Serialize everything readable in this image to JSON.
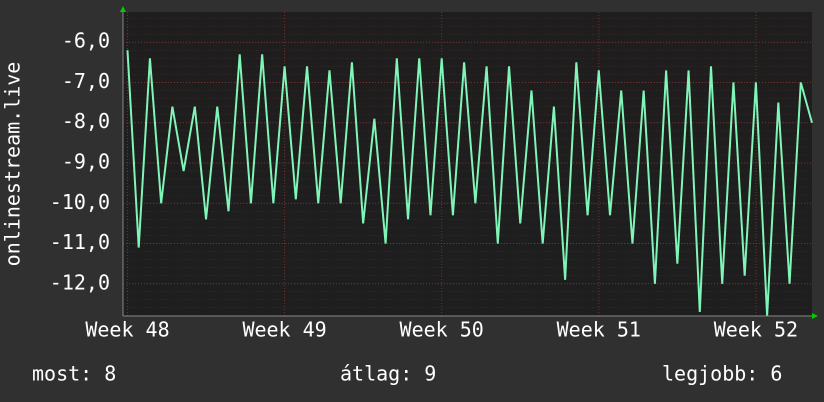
{
  "chart_data": {
    "type": "line",
    "y_label": "onlinestream.live",
    "x": [
      0,
      0.5,
      1,
      1.5,
      2,
      2.5,
      3,
      3.5,
      4,
      4.5,
      5,
      5.5,
      6,
      6.5,
      7,
      7.5,
      8,
      8.5,
      9,
      9.5,
      10,
      10.5,
      11,
      11.5,
      12,
      12.5,
      13,
      13.5,
      14,
      14.5,
      15,
      15.5,
      16,
      16.5,
      17,
      17.5,
      18,
      18.5,
      19,
      19.5,
      20,
      20.5,
      21,
      21.5,
      22,
      22.5,
      23,
      23.5,
      24,
      24.5,
      25,
      25.5,
      26,
      26.5,
      27,
      27.5,
      28,
      28.5,
      29,
      29.5,
      30,
      30.5
    ],
    "series": [
      {
        "color": "#80f5b8",
        "values": [
          -6.2,
          -11.1,
          -6.4,
          -10.0,
          -7.6,
          -9.2,
          -7.6,
          -10.4,
          -7.6,
          -10.2,
          -6.3,
          -10.0,
          -6.3,
          -10.0,
          -6.6,
          -9.9,
          -6.6,
          -10.0,
          -6.7,
          -10.0,
          -6.5,
          -10.5,
          -7.9,
          -11.0,
          -6.4,
          -10.4,
          -6.4,
          -10.3,
          -6.4,
          -10.3,
          -6.5,
          -10.0,
          -6.6,
          -11.0,
          -6.6,
          -10.5,
          -7.2,
          -11.0,
          -7.6,
          -11.9,
          -6.5,
          -10.3,
          -6.7,
          -10.3,
          -7.2,
          -11.0,
          -7.2,
          -12.0,
          -6.7,
          -11.5,
          -6.7,
          -12.7,
          -6.6,
          -12.0,
          -7.0,
          -11.8,
          -7.0,
          -12.8,
          -7.5,
          -12.0,
          -7.0,
          -8.0
        ]
      }
    ],
    "xlim": [
      -0.2,
      30.5
    ],
    "xticks": [
      {
        "value": 0,
        "label": "Week 48"
      },
      {
        "value": 7,
        "label": "Week 49"
      },
      {
        "value": 14,
        "label": "Week 50"
      },
      {
        "value": 21,
        "label": "Week 51"
      },
      {
        "value": 28,
        "label": "Week 52"
      }
    ],
    "ylim": [
      -12.8,
      -5.25
    ],
    "yticks": [
      {
        "value": -6,
        "label": "-6,0"
      },
      {
        "value": -7,
        "label": "-7,0"
      },
      {
        "value": -8,
        "label": "-8,0"
      },
      {
        "value": -9,
        "label": "-9,0"
      },
      {
        "value": -10,
        "label": "-10,0"
      },
      {
        "value": -11,
        "label": "-11,0"
      },
      {
        "value": -12,
        "label": "-12,0"
      }
    ],
    "grid": true,
    "footer": [
      "most: 8",
      "átlag: 9",
      "legjobb: 6"
    ]
  }
}
